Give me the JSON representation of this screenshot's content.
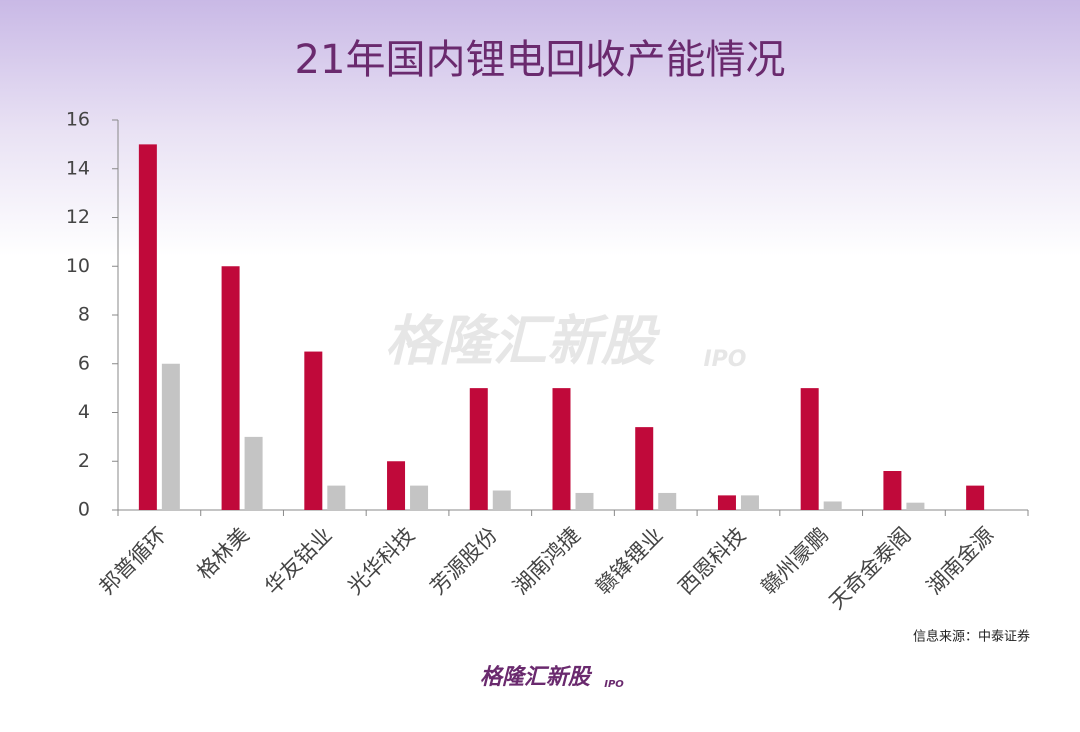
{
  "chart_data": {
    "type": "bar",
    "title": "21年国内锂电回收产能情况",
    "categories": [
      "邦普循环",
      "格林美",
      "华友钴业",
      "光华科技",
      "芳源股份",
      "湖南鸿捷",
      "赣锋锂业",
      "西恩科技",
      "赣州豪鹏",
      "天奇金泰阁",
      "湖南金源"
    ],
    "series": [
      {
        "color": "#c0093a",
        "values": [
          15,
          10,
          6.5,
          2,
          5,
          5,
          3.4,
          0.6,
          5,
          1.6,
          1
        ]
      },
      {
        "color": "#c4c4c4",
        "values": [
          6,
          3,
          1,
          1,
          0.8,
          0.7,
          0.7,
          0.6,
          0.35,
          0.3,
          null
        ]
      }
    ],
    "ylim": [
      0,
      16
    ],
    "yticks": [
      0,
      2,
      4,
      6,
      8,
      10,
      12,
      14,
      16
    ],
    "source": "信息来源：中泰证券"
  },
  "watermark": {
    "text": "格隆汇新股",
    "tag": "IPO"
  },
  "footer": {
    "logo": "格隆汇新股",
    "tag": "IPO"
  }
}
